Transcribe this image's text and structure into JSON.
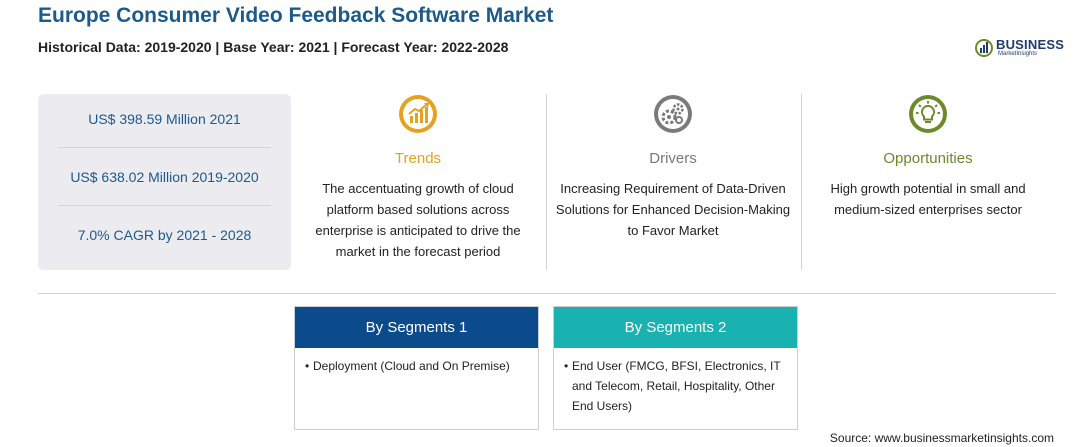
{
  "header": {
    "title": "Europe Consumer Video Feedback Software Market",
    "subtitle": "Historical Data: 2019-2020 | Base Year: 2021 | Forecast Year: 2022-2028"
  },
  "logo": {
    "word": "BUSINESS",
    "sub": "MarketInsights",
    "color": "#1f3c6e"
  },
  "stats": [
    "US$ 398.59 Million 2021",
    "US$ 638.02 Million 2019-2020",
    "7.0% CAGR by 2021 - 2028"
  ],
  "columns": {
    "trends": {
      "title": "Trends",
      "text": "The accentuating growth of cloud platform based solutions across enterprise is anticipated to drive the market in the forecast period",
      "color": "#e6a11f",
      "icon": "growth-chart-icon"
    },
    "drivers": {
      "title": "Drivers",
      "text": "Increasing Requirement of Data-Driven Solutions for Enhanced Decision-Making to Favor Market",
      "color": "#7a7a7a",
      "icon": "gears-icon"
    },
    "opportunities": {
      "title": "Opportunities",
      "text": "High growth potential in small and medium-sized enterprises sector",
      "color": "#6b8a2a",
      "icon": "lightbulb-icon"
    }
  },
  "segments": [
    {
      "title": "By Segments 1",
      "items": [
        "Deployment (Cloud and On Premise)"
      ],
      "color": "#0b4a8b"
    },
    {
      "title": "By Segments 2",
      "items": [
        "End User (FMCG, BFSI, Electronics, IT and Telecom, Retail, Hospitality, Other End Users)"
      ],
      "color": "#1ab2b0"
    }
  ],
  "source": "Source: www.businessmarketinsights.com"
}
